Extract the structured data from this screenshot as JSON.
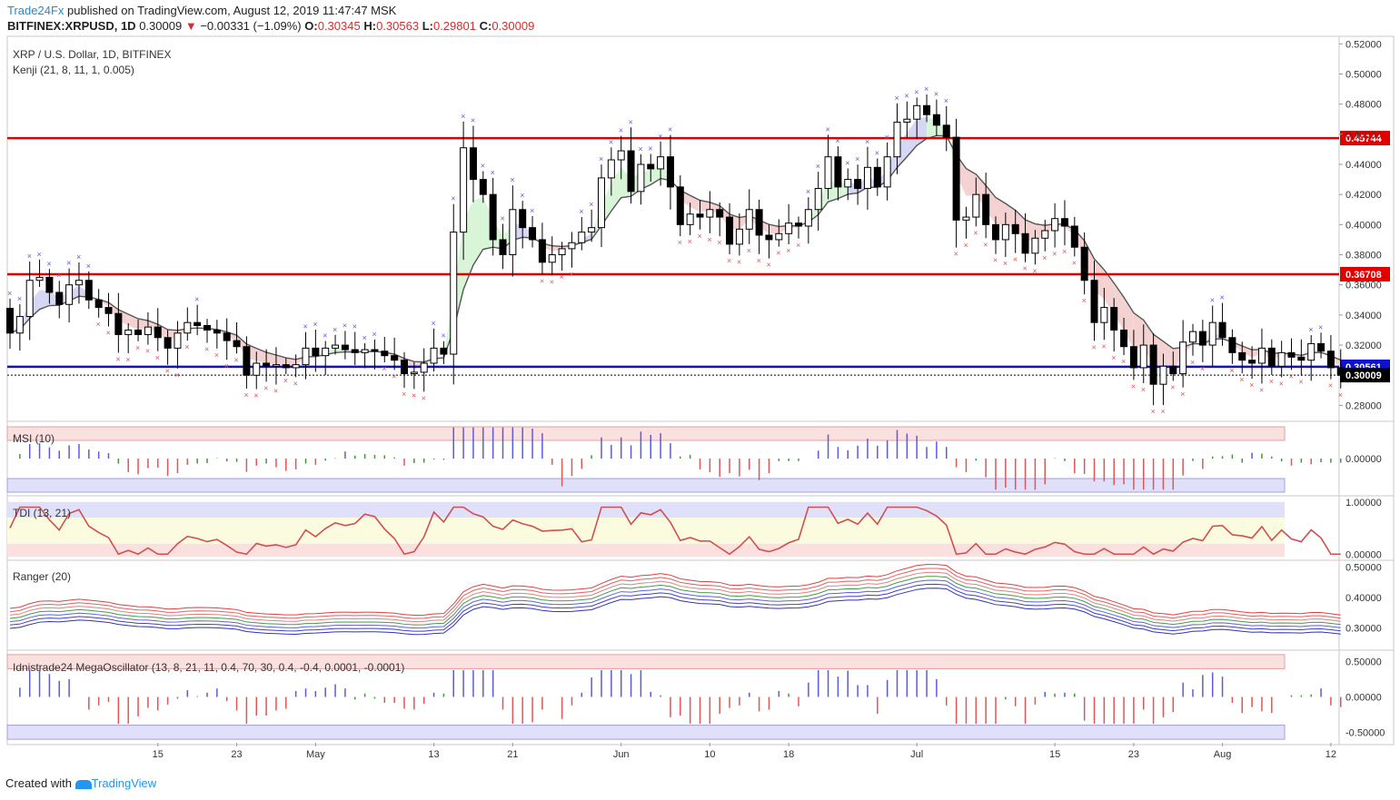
{
  "header": {
    "brand": "Trade24Fx",
    "published": " published on TradingView.com, August 12, 2019 11:47:47 MSK",
    "symbol": "BITFINEX:XRPUSD, 1D",
    "last": "0.30009",
    "arrow": "▼",
    "change": "−0.00331 (−1.09%)",
    "o_label": "O:",
    "o": "0.30345",
    "h_label": "H:",
    "h": "0.30563",
    "l_label": "L:",
    "l": "0.29801",
    "c_label": "C:",
    "c": "0.30009"
  },
  "panes": {
    "main_title": "XRP / U.S. Dollar, 1D, BITFINEX",
    "kenji": "Kenji (21, 8, 11, 1, 0.005)",
    "msi": "MSI (10)",
    "tdi": "TDI (13, 21)",
    "ranger": "Ranger (20)",
    "mega": "Idnistrade24 MegaOscillator (13, 8, 21, 11, 0.4, 70, 30, 0.4, -0.4, 0.0001, -0.0001)"
  },
  "footer": {
    "created": "Created with",
    "tv": "TradingView"
  },
  "colors": {
    "up": "#ffffff",
    "down": "#000000",
    "buy": "#5a5ae0",
    "sell": "#e05555",
    "level_red": "#e00000",
    "level_blue": "#1010d0"
  },
  "chart_data": [
    {
      "type": "candlestick",
      "title": "XRP / U.S. Dollar, 1D, BITFINEX",
      "ylim": [
        0.27,
        0.525
      ],
      "y_ticks": [
        "0.52000",
        "0.50000",
        "0.48000",
        "0.46000",
        "0.44000",
        "0.42000",
        "0.40000",
        "0.38000",
        "0.36000",
        "0.34000",
        "0.32000",
        "0.28000"
      ],
      "x_ticks": [
        {
          "label": "15",
          "i": 15
        },
        {
          "label": "23",
          "i": 23
        },
        {
          "label": "May",
          "i": 31
        },
        {
          "label": "13",
          "i": 43
        },
        {
          "label": "21",
          "i": 51
        },
        {
          "label": "Jun",
          "i": 62
        },
        {
          "label": "10",
          "i": 71
        },
        {
          "label": "18",
          "i": 79
        },
        {
          "label": "Jul",
          "i": 92
        },
        {
          "label": "15",
          "i": 106
        },
        {
          "label": "23",
          "i": 114
        },
        {
          "label": "Aug",
          "i": 123
        },
        {
          "label": "12",
          "i": 134
        }
      ],
      "levels": [
        {
          "value": 0.45744,
          "label": "0.45744",
          "color": "#e00000"
        },
        {
          "value": 0.36708,
          "label": "0.36708",
          "color": "#e00000"
        },
        {
          "value": 0.30561,
          "label": "0.30561",
          "color": "#1010d0"
        }
      ],
      "last_price": {
        "value": 0.30009,
        "label": "0.30009"
      },
      "close": [
        0.328,
        0.339,
        0.363,
        0.365,
        0.355,
        0.347,
        0.36,
        0.363,
        0.35,
        0.345,
        0.341,
        0.327,
        0.33,
        0.327,
        0.332,
        0.325,
        0.318,
        0.328,
        0.335,
        0.333,
        0.33,
        0.328,
        0.323,
        0.319,
        0.3,
        0.308,
        0.306,
        0.307,
        0.305,
        0.307,
        0.318,
        0.313,
        0.318,
        0.32,
        0.317,
        0.315,
        0.317,
        0.316,
        0.313,
        0.31,
        0.301,
        0.302,
        0.308,
        0.318,
        0.314,
        0.395,
        0.451,
        0.43,
        0.42,
        0.39,
        0.38,
        0.41,
        0.398,
        0.39,
        0.375,
        0.38,
        0.384,
        0.388,
        0.395,
        0.398,
        0.431,
        0.443,
        0.449,
        0.422,
        0.44,
        0.437,
        0.445,
        0.425,
        0.4,
        0.407,
        0.405,
        0.41,
        0.405,
        0.387,
        0.397,
        0.41,
        0.393,
        0.39,
        0.394,
        0.401,
        0.399,
        0.41,
        0.424,
        0.445,
        0.425,
        0.43,
        0.424,
        0.438,
        0.425,
        0.445,
        0.468,
        0.47,
        0.479,
        0.473,
        0.466,
        0.458,
        0.403,
        0.405,
        0.42,
        0.4,
        0.39,
        0.4,
        0.394,
        0.381,
        0.391,
        0.396,
        0.404,
        0.399,
        0.385,
        0.363,
        0.335,
        0.345,
        0.33,
        0.319,
        0.305,
        0.32,
        0.294,
        0.306,
        0.301,
        0.322,
        0.329,
        0.32,
        0.335,
        0.325,
        0.315,
        0.31,
        0.308,
        0.318,
        0.306,
        0.315,
        0.312,
        0.31,
        0.321,
        0.316,
        0.305,
        0.3
      ]
    },
    {
      "type": "bar",
      "title": "MSI (10)",
      "ylim": [
        -0.035,
        0.035
      ],
      "y_ticks": [
        "0.00000"
      ]
    },
    {
      "type": "line",
      "title": "TDI (13, 21)",
      "ylim": [
        -0.1,
        1.1
      ],
      "y_ticks": [
        "1.00000",
        "0.00000"
      ]
    },
    {
      "type": "line",
      "title": "Ranger (20)",
      "ylim": [
        0.23,
        0.52
      ],
      "y_ticks": [
        "0.50000",
        "0.40000",
        "0.30000"
      ]
    },
    {
      "type": "bar",
      "title": "Idnistrade24 MegaOscillator (13, 8, 21, 11, 0.4, 70, 30, 0.4, -0.4, 0.0001, -0.0001)",
      "ylim": [
        -0.65,
        0.65
      ],
      "y_ticks": [
        "0.50000",
        "0.00000",
        "-0.50000"
      ]
    }
  ]
}
